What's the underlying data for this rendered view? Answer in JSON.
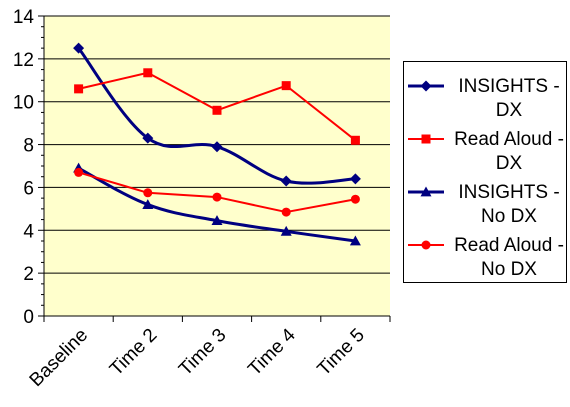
{
  "chart_data": {
    "type": "line",
    "title": "",
    "xlabel": "",
    "ylabel": "",
    "categories": [
      "Baseline",
      "Time 2",
      "Time 3",
      "Time 4",
      "Time 5"
    ],
    "ylim": [
      0,
      14
    ],
    "y_ticks": [
      0,
      2,
      4,
      6,
      8,
      10,
      12,
      14
    ],
    "grid": "horizontal",
    "plot_background": "#FFFFCC",
    "legend_position": "right",
    "series": [
      {
        "name": "INSIGHTS - DX",
        "values": [
          12.5,
          8.3,
          7.9,
          6.3,
          6.4
        ],
        "color": "#000080",
        "marker": "diamond"
      },
      {
        "name": "Read Aloud - DX",
        "values": [
          10.6,
          11.35,
          9.6,
          10.75,
          8.2
        ],
        "color": "#FF0000",
        "marker": "square"
      },
      {
        "name": "INSIGHTS - No DX",
        "values": [
          6.9,
          5.2,
          4.45,
          3.95,
          3.5
        ],
        "color": "#000080",
        "marker": "triangle"
      },
      {
        "name": "Read Aloud - No DX",
        "values": [
          6.7,
          5.75,
          5.55,
          4.85,
          5.45
        ],
        "color": "#FF0000",
        "marker": "circle"
      }
    ]
  }
}
